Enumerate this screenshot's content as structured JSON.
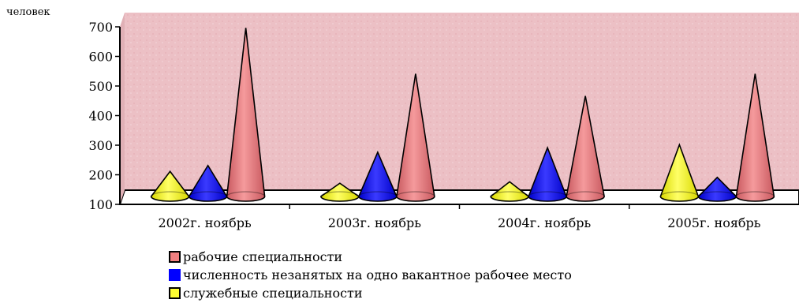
{
  "chart_data": {
    "type": "bar",
    "style": "3d-cone",
    "ylabel": "человек",
    "ylim": [
      100,
      700
    ],
    "yticks": [
      100,
      200,
      300,
      400,
      500,
      600,
      700
    ],
    "categories": [
      "2002г. ноябрь",
      "2003г. ноябрь",
      "2004г. ноябрь",
      "2005г. ноябрь"
    ],
    "series": [
      {
        "name": "служебные специальности",
        "color": "#ffff33",
        "values": [
          190,
          150,
          155,
          280
        ]
      },
      {
        "name": "численность незанятых на одно вакантное рабочее место",
        "color": "#0000ff",
        "values": [
          210,
          255,
          270,
          170
        ]
      },
      {
        "name": "рабочие специальности",
        "color": "#f07f80",
        "values": [
          675,
          520,
          445,
          520
        ]
      }
    ],
    "legend": [
      {
        "label": "рабочие специальности",
        "color": "#f07f80",
        "swatch": "red"
      },
      {
        "label": "численность незанятых на одно вакантное рабочее место",
        "color": "#0000ff",
        "swatch": "blue"
      },
      {
        "label": "служебные специальности",
        "color": "#ffff33",
        "swatch": "yellow"
      }
    ],
    "legend_placement": "bottom",
    "background": "#e9b9be"
  }
}
